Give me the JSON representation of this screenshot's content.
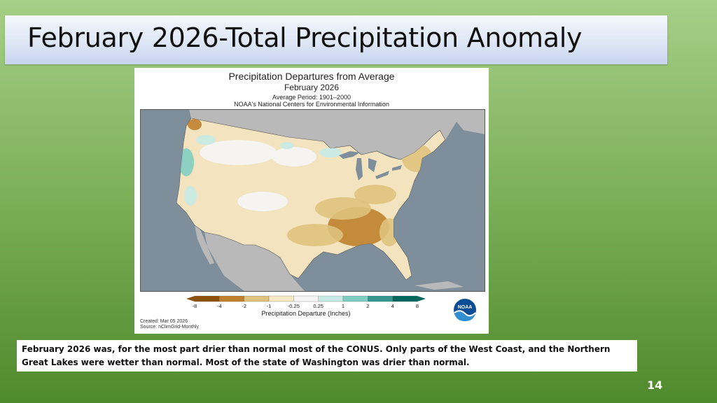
{
  "slide": {
    "title": "February 2026-Total Precipitation Anomaly",
    "page_number": "14",
    "caption": "February 2026 was, for the most part drier than normal most of the CONUS. Only parts of the West Coast, and the Northern Great Lakes were wetter than normal. Most of the state of Washington was drier than normal."
  },
  "map": {
    "title": "Precipitation Departures from Average",
    "subtitle": "February 2026",
    "period": "Average Period: 1901–2000",
    "agency": "NOAA's National Centers for Environmental Information",
    "created": "Created: Mar 05 2026",
    "source": "Source: nClimGrid-Monthly",
    "legend": {
      "title": "Precipitation Departure (Inches)",
      "ticks": [
        "-8",
        "-4",
        "-2",
        "-1",
        "-0.25",
        "0.25",
        "1",
        "2",
        "4",
        "8"
      ],
      "colors": [
        "#8c510a",
        "#bf812d",
        "#dfc27d",
        "#f6e8c3",
        "#f5f5f5",
        "#c7eae5",
        "#80cdc1",
        "#35978f",
        "#01665e"
      ]
    },
    "colors": {
      "water": "#7e8f9b",
      "land_outside": "#b9b9b9",
      "dry_strong": "#bf812d",
      "dry_moderate": "#dfc27d",
      "dry_light": "#f6e8c3",
      "near_normal": "#f5f5f5",
      "wet_light": "#c7eae5",
      "wet_moderate": "#80cdc1"
    },
    "logo_text": "NOAA"
  }
}
